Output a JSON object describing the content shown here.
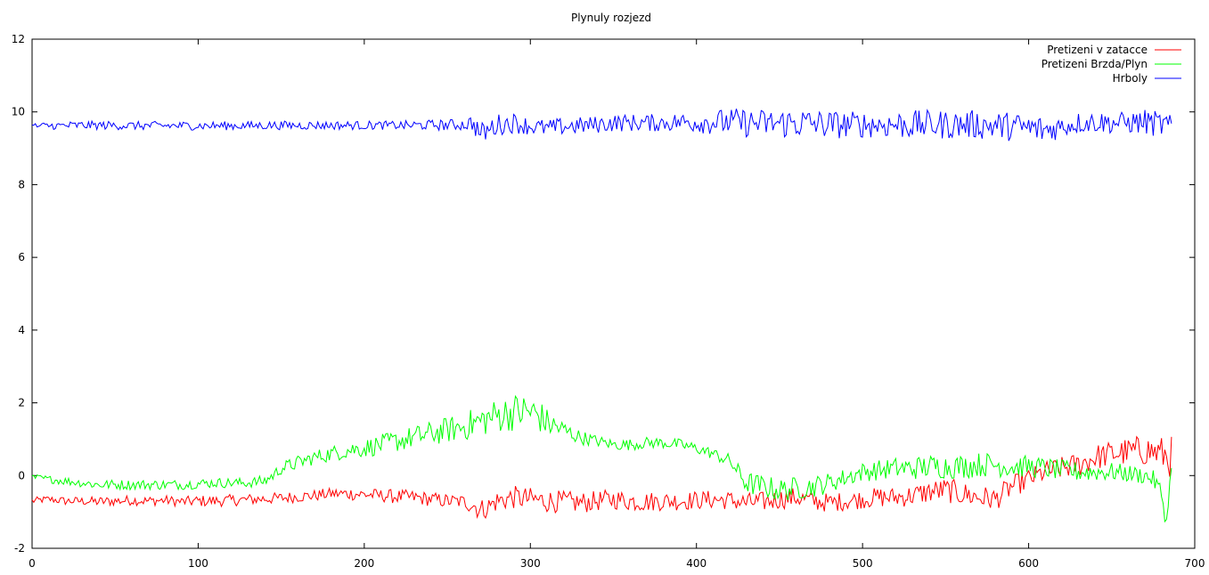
{
  "chart_data": {
    "type": "line",
    "title": "Plynuly rozjezd",
    "xlabel": "",
    "ylabel": "",
    "xlim": [
      0,
      700
    ],
    "ylim": [
      -2,
      12
    ],
    "xticks": [
      0,
      100,
      200,
      300,
      400,
      500,
      600,
      700
    ],
    "yticks": [
      -2,
      0,
      2,
      4,
      6,
      8,
      10,
      12
    ],
    "grid": false,
    "legend_position": "top-right",
    "series": [
      {
        "name": "Pretizeni v zatacce",
        "color": "#ff0000",
        "x": [
          0,
          10,
          20,
          30,
          40,
          50,
          60,
          70,
          80,
          90,
          100,
          110,
          120,
          130,
          140,
          150,
          160,
          170,
          180,
          190,
          200,
          210,
          220,
          230,
          240,
          250,
          260,
          265,
          270,
          275,
          280,
          290,
          300,
          310,
          320,
          330,
          340,
          350,
          360,
          370,
          380,
          390,
          400,
          410,
          420,
          430,
          440,
          450,
          460,
          470,
          480,
          490,
          500,
          510,
          520,
          530,
          540,
          550,
          560,
          570,
          580,
          590,
          600,
          610,
          620,
          630,
          640,
          650,
          660,
          670,
          680,
          686
        ],
        "y": [
          -0.7,
          -0.65,
          -0.7,
          -0.7,
          -0.72,
          -0.7,
          -0.68,
          -0.7,
          -0.68,
          -0.72,
          -0.7,
          -0.7,
          -0.68,
          -0.66,
          -0.64,
          -0.62,
          -0.58,
          -0.55,
          -0.5,
          -0.5,
          -0.52,
          -0.55,
          -0.58,
          -0.6,
          -0.65,
          -0.7,
          -0.72,
          -0.78,
          -0.95,
          -0.85,
          -0.7,
          -0.6,
          -0.65,
          -0.7,
          -0.72,
          -0.75,
          -0.7,
          -0.65,
          -0.7,
          -0.72,
          -0.7,
          -0.7,
          -0.68,
          -0.66,
          -0.68,
          -0.75,
          -0.72,
          -0.65,
          -0.6,
          -0.7,
          -0.75,
          -0.7,
          -0.65,
          -0.6,
          -0.6,
          -0.55,
          -0.45,
          -0.4,
          -0.5,
          -0.6,
          -0.65,
          -0.3,
          -0.1,
          0.1,
          0.2,
          0.3,
          0.5,
          0.6,
          0.65,
          0.7,
          0.6,
          0.5
        ],
        "noise": [
          0.05,
          0.05,
          0.06,
          0.06,
          0.07,
          0.07,
          0.07,
          0.07,
          0.07,
          0.07,
          0.08,
          0.08,
          0.08,
          0.08,
          0.08,
          0.08,
          0.08,
          0.08,
          0.08,
          0.09,
          0.09,
          0.09,
          0.1,
          0.1,
          0.1,
          0.1,
          0.1,
          0.15,
          0.15,
          0.15,
          0.15,
          0.16,
          0.16,
          0.16,
          0.15,
          0.15,
          0.14,
          0.14,
          0.14,
          0.14,
          0.13,
          0.13,
          0.13,
          0.13,
          0.13,
          0.14,
          0.14,
          0.14,
          0.14,
          0.14,
          0.13,
          0.13,
          0.13,
          0.14,
          0.14,
          0.15,
          0.16,
          0.17,
          0.17,
          0.17,
          0.16,
          0.15,
          0.15,
          0.15,
          0.16,
          0.17,
          0.18,
          0.18,
          0.2,
          0.22,
          0.24,
          0.3
        ]
      },
      {
        "name": "Pretizeni Brzda/Plyn",
        "color": "#00ff00",
        "x": [
          0,
          10,
          20,
          30,
          40,
          50,
          60,
          70,
          80,
          90,
          100,
          110,
          120,
          130,
          140,
          145,
          150,
          160,
          170,
          180,
          190,
          200,
          210,
          220,
          230,
          240,
          250,
          260,
          270,
          280,
          290,
          300,
          305,
          310,
          320,
          330,
          340,
          350,
          360,
          370,
          380,
          390,
          400,
          410,
          420,
          425,
          430,
          440,
          450,
          460,
          470,
          480,
          490,
          500,
          510,
          520,
          530,
          540,
          550,
          560,
          570,
          580,
          590,
          600,
          610,
          620,
          630,
          640,
          650,
          660,
          670,
          675,
          680,
          683,
          686
        ],
        "y": [
          -0.05,
          -0.1,
          -0.15,
          -0.2,
          -0.25,
          -0.25,
          -0.25,
          -0.25,
          -0.25,
          -0.25,
          -0.22,
          -0.2,
          -0.2,
          -0.2,
          -0.15,
          0.0,
          0.2,
          0.35,
          0.5,
          0.6,
          0.7,
          0.75,
          0.85,
          0.95,
          1.05,
          1.15,
          1.25,
          1.35,
          1.5,
          1.65,
          1.75,
          1.75,
          1.65,
          1.45,
          1.25,
          1.05,
          0.95,
          0.85,
          0.85,
          0.9,
          0.9,
          0.85,
          0.75,
          0.6,
          0.4,
          0.1,
          -0.2,
          -0.3,
          -0.4,
          -0.35,
          -0.3,
          -0.2,
          -0.05,
          0.1,
          0.15,
          0.2,
          0.2,
          0.25,
          0.25,
          0.25,
          0.3,
          0.3,
          0.25,
          0.25,
          0.2,
          0.15,
          0.1,
          0.1,
          0.1,
          0.05,
          0.0,
          -0.1,
          -0.5,
          -1.3,
          0.3
        ],
        "noise": [
          0.05,
          0.05,
          0.06,
          0.06,
          0.07,
          0.07,
          0.07,
          0.07,
          0.07,
          0.07,
          0.07,
          0.07,
          0.07,
          0.07,
          0.08,
          0.08,
          0.09,
          0.1,
          0.1,
          0.11,
          0.12,
          0.13,
          0.14,
          0.15,
          0.16,
          0.17,
          0.18,
          0.2,
          0.22,
          0.24,
          0.26,
          0.26,
          0.24,
          0.2,
          0.14,
          0.1,
          0.08,
          0.08,
          0.08,
          0.08,
          0.08,
          0.08,
          0.08,
          0.08,
          0.1,
          0.12,
          0.16,
          0.16,
          0.16,
          0.16,
          0.15,
          0.14,
          0.13,
          0.13,
          0.14,
          0.15,
          0.16,
          0.17,
          0.17,
          0.17,
          0.17,
          0.17,
          0.16,
          0.15,
          0.15,
          0.14,
          0.14,
          0.13,
          0.13,
          0.12,
          0.12,
          0.12,
          0.15,
          0.1,
          0.05
        ]
      },
      {
        "name": "Hrboly",
        "color": "#0000ff",
        "x": [
          0,
          10,
          20,
          30,
          40,
          50,
          60,
          70,
          80,
          90,
          100,
          110,
          120,
          130,
          140,
          150,
          160,
          170,
          180,
          190,
          200,
          210,
          220,
          230,
          240,
          250,
          260,
          265,
          270,
          275,
          280,
          290,
          300,
          310,
          320,
          330,
          340,
          350,
          360,
          370,
          380,
          390,
          400,
          410,
          420,
          430,
          440,
          450,
          460,
          470,
          480,
          490,
          500,
          510,
          520,
          530,
          540,
          550,
          560,
          570,
          580,
          590,
          600,
          610,
          620,
          630,
          640,
          650,
          660,
          670,
          680,
          686
        ],
        "y": [
          9.6,
          9.62,
          9.62,
          9.63,
          9.63,
          9.63,
          9.62,
          9.62,
          9.62,
          9.62,
          9.62,
          9.62,
          9.62,
          9.62,
          9.63,
          9.63,
          9.63,
          9.63,
          9.63,
          9.63,
          9.63,
          9.63,
          9.63,
          9.63,
          9.64,
          9.64,
          9.65,
          9.7,
          9.4,
          9.5,
          9.65,
          9.7,
          9.6,
          9.55,
          9.6,
          9.62,
          9.65,
          9.7,
          9.7,
          9.7,
          9.7,
          9.72,
          9.72,
          9.72,
          9.72,
          9.7,
          9.68,
          9.68,
          9.7,
          9.68,
          9.65,
          9.65,
          9.65,
          9.65,
          9.65,
          9.65,
          9.65,
          9.65,
          9.65,
          9.65,
          9.62,
          9.6,
          9.55,
          9.5,
          9.6,
          9.7,
          9.72,
          9.7,
          9.7,
          9.72,
          9.65,
          9.6
        ],
        "noise": [
          0.05,
          0.05,
          0.06,
          0.06,
          0.06,
          0.06,
          0.06,
          0.06,
          0.06,
          0.06,
          0.06,
          0.06,
          0.06,
          0.06,
          0.06,
          0.06,
          0.06,
          0.06,
          0.06,
          0.06,
          0.06,
          0.06,
          0.06,
          0.07,
          0.07,
          0.08,
          0.08,
          0.12,
          0.15,
          0.15,
          0.15,
          0.14,
          0.12,
          0.12,
          0.12,
          0.12,
          0.12,
          0.12,
          0.12,
          0.12,
          0.12,
          0.13,
          0.15,
          0.17,
          0.19,
          0.2,
          0.2,
          0.2,
          0.22,
          0.2,
          0.2,
          0.19,
          0.18,
          0.18,
          0.2,
          0.2,
          0.2,
          0.2,
          0.2,
          0.2,
          0.2,
          0.2,
          0.2,
          0.2,
          0.15,
          0.15,
          0.15,
          0.15,
          0.15,
          0.18,
          0.18,
          0.15
        ]
      }
    ]
  }
}
